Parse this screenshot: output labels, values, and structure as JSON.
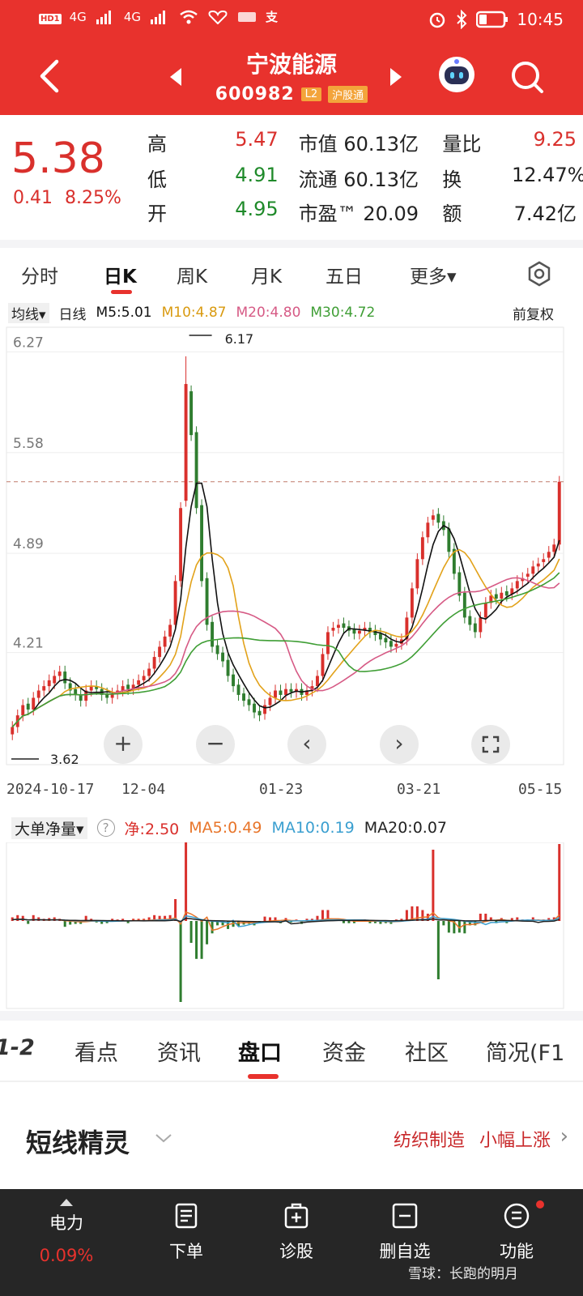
{
  "status_bar": {
    "time": "10:45",
    "net1": "4G",
    "net2": "4G"
  },
  "header": {
    "title": "宁波能源",
    "code": "600982",
    "tag_level": "L2",
    "tag_connect": "沪股通"
  },
  "quote": {
    "price": "5.38",
    "change": "0.41",
    "change_pct": "8.25%",
    "rows": [
      {
        "l1": "高",
        "v1": "5.47",
        "l2": "市值",
        "v2": "60.13亿",
        "l3": "量比",
        "v3": "9.25"
      },
      {
        "l1": "低",
        "v1": "4.91",
        "l2": "流通",
        "v2": "60.13亿",
        "l3": "换",
        "v3": "12.47%"
      },
      {
        "l1": "开",
        "v1": "4.95",
        "l2": "市盈™",
        "v2": "20.09",
        "l3": "额",
        "v3": "7.42亿"
      }
    ]
  },
  "chart_tabs": [
    "分时",
    "日K",
    "周K",
    "月K",
    "五日",
    "更多▾"
  ],
  "ma_legend": {
    "mode": "均线▾",
    "period": "日线",
    "m5": "M5:5.01",
    "m10": "M10:4.87",
    "m20": "M20:4.80",
    "m30": "M30:4.72",
    "adjust": "前复权"
  },
  "chart_data": {
    "type": "candlestick",
    "y_ticks": [
      "6.27",
      "5.58",
      "4.89",
      "4.21"
    ],
    "ylim": [
      3.52,
      6.35
    ],
    "x_labels": [
      "2024-10-17",
      "12-04",
      "01-23",
      "03-21",
      "05-15"
    ],
    "high_label": "6.17",
    "low_label": "3.62",
    "current_price_line": 5.38,
    "closes": [
      3.7,
      3.78,
      3.85,
      3.82,
      3.9,
      3.95,
      3.98,
      4.02,
      4.05,
      4.08,
      4.0,
      3.95,
      3.92,
      3.88,
      3.95,
      3.98,
      3.96,
      3.92,
      3.9,
      3.93,
      3.95,
      3.98,
      3.96,
      3.99,
      4.02,
      4.05,
      4.1,
      4.18,
      4.25,
      4.32,
      4.4,
      4.7,
      5.2,
      6.05,
      5.7,
      5.2,
      4.7,
      4.4,
      4.25,
      4.2,
      4.15,
      4.05,
      3.98,
      3.92,
      3.88,
      3.85,
      3.8,
      3.78,
      3.85,
      3.9,
      3.95,
      3.92,
      3.96,
      3.94,
      3.96,
      3.92,
      3.95,
      3.98,
      4.05,
      4.2,
      4.35,
      4.38,
      4.4,
      4.38,
      4.36,
      4.34,
      4.36,
      4.38,
      4.35,
      4.33,
      4.3,
      4.28,
      4.25,
      4.27,
      4.3,
      4.45,
      4.65,
      4.85,
      5.0,
      5.1,
      5.15,
      5.1,
      5.05,
      4.9,
      4.75,
      4.6,
      4.45,
      4.4,
      4.35,
      4.45,
      4.55,
      4.6,
      4.58,
      4.62,
      4.6,
      4.65,
      4.7,
      4.72,
      4.75,
      4.8,
      4.82,
      4.85,
      4.9,
      4.95,
      5.38
    ],
    "opens": [
      3.65,
      3.7,
      3.78,
      3.86,
      3.82,
      3.9,
      3.95,
      3.98,
      4.0,
      4.05,
      4.08,
      4.0,
      3.96,
      3.92,
      3.88,
      3.95,
      3.98,
      3.96,
      3.93,
      3.9,
      3.93,
      3.95,
      3.99,
      3.96,
      3.99,
      4.02,
      4.05,
      4.1,
      4.18,
      4.25,
      4.32,
      4.4,
      4.7,
      5.25,
      6.0,
      5.72,
      5.22,
      4.72,
      4.42,
      4.26,
      4.21,
      4.16,
      4.06,
      3.99,
      3.93,
      3.89,
      3.86,
      3.81,
      3.79,
      3.85,
      3.9,
      3.95,
      3.92,
      3.96,
      3.94,
      3.96,
      3.92,
      3.95,
      3.98,
      4.05,
      4.2,
      4.36,
      4.38,
      4.41,
      4.39,
      4.37,
      4.34,
      4.36,
      4.38,
      4.36,
      4.34,
      4.31,
      4.29,
      4.25,
      4.27,
      4.3,
      4.45,
      4.65,
      4.85,
      5.0,
      5.12,
      5.16,
      5.11,
      5.06,
      4.92,
      4.76,
      4.62,
      4.46,
      4.41,
      4.35,
      4.45,
      4.55,
      4.61,
      4.58,
      4.63,
      4.61,
      4.65,
      4.7,
      4.73,
      4.75,
      4.8,
      4.83,
      4.86,
      4.9,
      4.95
    ],
    "series": [
      {
        "name": "M5",
        "color": "#111111"
      },
      {
        "name": "M10",
        "color": "#e2a21a"
      },
      {
        "name": "M20",
        "color": "#d65a85"
      },
      {
        "name": "M30",
        "color": "#3f9e35"
      }
    ]
  },
  "indicator": {
    "name": "大单净量▾",
    "help": "?",
    "net": "净:2.50",
    "ma5": "MA5:0.49",
    "ma10": "MA10:0.19",
    "ma20": "MA20:0.07",
    "colors": {
      "net": "#d9302c",
      "ma5": "#e8752a",
      "ma10": "#3a9fd0",
      "ma20": "#222222"
    }
  },
  "bottom_tabs": [
    "1-2",
    "看点",
    "资讯",
    "盘口",
    "资金",
    "社区",
    "简况(F1"
  ],
  "sprite": {
    "title": "短线精灵",
    "tag1": "纺织制造",
    "tag2": "小幅上涨",
    "arrow": "›"
  },
  "bottom_nav": {
    "sector_name": "电力",
    "sector_change": "0.09%",
    "order": "下单",
    "diagnose": "诊股",
    "remove": "删自选",
    "function": "功能"
  },
  "watermark": "雪球：长跑的明月",
  "controls": {
    "zoom_in": "+",
    "zoom_out": "−",
    "prev": "‹",
    "next": "›"
  }
}
